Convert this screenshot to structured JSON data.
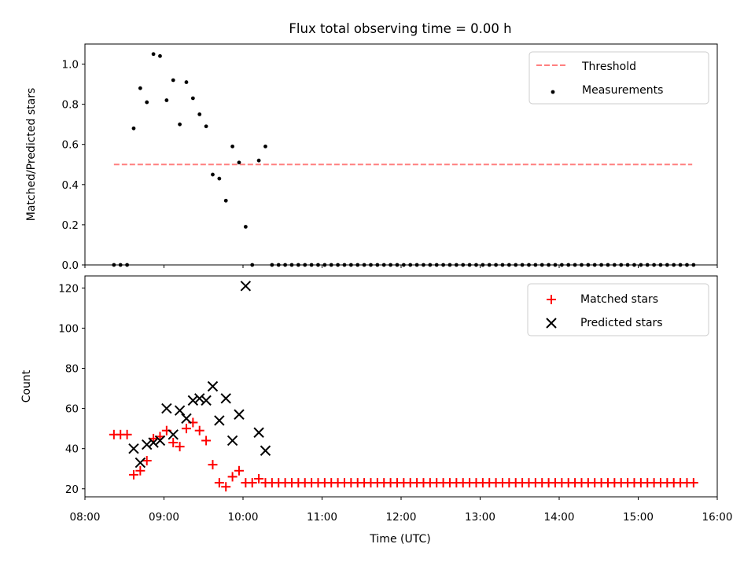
{
  "chart_data": [
    {
      "type": "scatter",
      "title": "Flux total observing time = 0.00 h",
      "ylabel": "Matched/Predicted stars",
      "xlabel": "",
      "ylim": [
        0,
        1.1
      ],
      "xlim": [
        "08:00",
        "16:00"
      ],
      "y_ticks": [
        "0.0",
        "0.2",
        "0.4",
        "0.6",
        "0.8",
        "1.0"
      ],
      "legend_position": "top-right",
      "threshold": {
        "name": "Threshold",
        "value": 0.5,
        "x_start": "08:22",
        "x_end": "15:41",
        "color": "#ff7f7f"
      },
      "series": [
        {
          "name": "Measurements",
          "color": "#000000",
          "points": [
            [
              "08:22",
              0.0
            ],
            [
              "08:27",
              0.0
            ],
            [
              "08:32",
              0.0
            ],
            [
              "08:37",
              0.68
            ],
            [
              "08:42",
              0.88
            ],
            [
              "08:47",
              0.81
            ],
            [
              "08:52",
              1.05
            ],
            [
              "08:57",
              1.04
            ],
            [
              "09:02",
              0.82
            ],
            [
              "09:07",
              0.92
            ],
            [
              "09:12",
              0.7
            ],
            [
              "09:17",
              0.91
            ],
            [
              "09:22",
              0.83
            ],
            [
              "09:27",
              0.75
            ],
            [
              "09:32",
              0.69
            ],
            [
              "09:37",
              0.45
            ],
            [
              "09:42",
              0.43
            ],
            [
              "09:47",
              0.32
            ],
            [
              "09:52",
              0.59
            ],
            [
              "09:57",
              0.51
            ],
            [
              "10:02",
              0.19
            ],
            [
              "10:07",
              0.0
            ],
            [
              "10:12",
              0.52
            ],
            [
              "10:17",
              0.59
            ]
          ],
          "zero_tail": {
            "start": "10:22",
            "end": "15:42",
            "step_min": 5,
            "value": 0.0
          }
        }
      ]
    },
    {
      "type": "scatter",
      "title": "",
      "xlabel": "Time (UTC)",
      "ylabel": "Count",
      "ylim": [
        16,
        126
      ],
      "xlim": [
        "08:00",
        "16:00"
      ],
      "y_ticks": [
        "20",
        "40",
        "60",
        "80",
        "100",
        "120"
      ],
      "x_ticks": [
        "08:00",
        "09:00",
        "10:00",
        "11:00",
        "12:00",
        "13:00",
        "14:00",
        "15:00",
        "16:00"
      ],
      "legend_position": "top-right",
      "series": [
        {
          "name": "Matched stars",
          "marker": "plus",
          "color": "#ff0000",
          "points": [
            [
              "08:22",
              47
            ],
            [
              "08:27",
              47
            ],
            [
              "08:32",
              47
            ],
            [
              "08:37",
              27
            ],
            [
              "08:42",
              29
            ],
            [
              "08:47",
              34
            ],
            [
              "08:52",
              45
            ],
            [
              "08:57",
              46
            ],
            [
              "09:02",
              49
            ],
            [
              "09:07",
              43
            ],
            [
              "09:12",
              41
            ],
            [
              "09:17",
              50
            ],
            [
              "09:22",
              53
            ],
            [
              "09:27",
              49
            ],
            [
              "09:32",
              44
            ],
            [
              "09:37",
              32
            ],
            [
              "09:42",
              23
            ],
            [
              "09:47",
              21
            ],
            [
              "09:52",
              26
            ],
            [
              "09:57",
              29
            ],
            [
              "10:02",
              23
            ],
            [
              "10:07",
              23
            ],
            [
              "10:12",
              25
            ],
            [
              "10:17",
              23
            ]
          ],
          "constant_tail": {
            "start": "10:22",
            "end": "15:42",
            "step_min": 5,
            "value": 23
          }
        },
        {
          "name": "Predicted stars",
          "marker": "x",
          "color": "#000000",
          "points": [
            [
              "08:37",
              40
            ],
            [
              "08:42",
              33
            ],
            [
              "08:47",
              42
            ],
            [
              "08:52",
              43
            ],
            [
              "08:57",
              44
            ],
            [
              "09:02",
              60
            ],
            [
              "09:07",
              47
            ],
            [
              "09:12",
              59
            ],
            [
              "09:17",
              55
            ],
            [
              "09:22",
              64
            ],
            [
              "09:27",
              65
            ],
            [
              "09:32",
              64
            ],
            [
              "09:37",
              71
            ],
            [
              "09:42",
              54
            ],
            [
              "09:47",
              65
            ],
            [
              "09:52",
              44
            ],
            [
              "09:57",
              57
            ],
            [
              "10:02",
              121
            ],
            [
              "10:12",
              48
            ],
            [
              "10:17",
              39
            ]
          ]
        }
      ]
    }
  ]
}
